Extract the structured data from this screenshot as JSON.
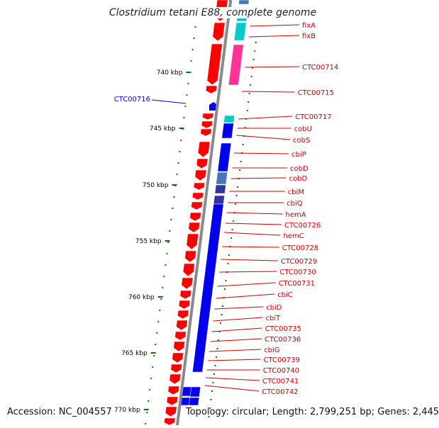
{
  "title": "Clostridium tetani E88, complete genome",
  "accession_label": "Accession: NC_004557",
  "topology_label": "Topology: circular; Length: 2,799,251 bp; Genes: 2,445",
  "colors": {
    "backbone": "#8a8a8a",
    "gene_forward": "#ff0000",
    "gene_reverse": "#0000ff",
    "label_forward": "#cc0000",
    "label_reverse": "#0000cc",
    "tick": "#007700",
    "cog_blue": "#0000ee",
    "cog_navy": "#333399",
    "cog_steel": "#4477bb",
    "cog_cyan": "#00cccc",
    "cog_pink": "#ff3399"
  },
  "scale_ticks": [
    "740 kbp",
    "745 kbp",
    "750 kbp",
    "755 kbp",
    "760 kbp",
    "765 kbp",
    "770 kbp"
  ],
  "gene_labels": [
    {
      "name": "fixA",
      "strand": "forward"
    },
    {
      "name": "fixB",
      "strand": "forward"
    },
    {
      "name": "CTC00714",
      "strand": "forward"
    },
    {
      "name": "CTC00715",
      "strand": "forward"
    },
    {
      "name": "CTC00716",
      "strand": "reverse"
    },
    {
      "name": "CTC00717",
      "strand": "forward"
    },
    {
      "name": "cobU",
      "strand": "forward"
    },
    {
      "name": "cobS",
      "strand": "forward"
    },
    {
      "name": "cbiP",
      "strand": "forward"
    },
    {
      "name": "cobD",
      "strand": "forward"
    },
    {
      "name": "cobD",
      "strand": "forward"
    },
    {
      "name": "cbiM",
      "strand": "forward"
    },
    {
      "name": "cbiQ",
      "strand": "forward"
    },
    {
      "name": "hemA",
      "strand": "forward"
    },
    {
      "name": "CTC00726",
      "strand": "forward"
    },
    {
      "name": "hemC",
      "strand": "forward"
    },
    {
      "name": "CTC00728",
      "strand": "forward"
    },
    {
      "name": "CTC00729",
      "strand": "forward"
    },
    {
      "name": "CTC00730",
      "strand": "forward"
    },
    {
      "name": "CTC00731",
      "strand": "forward"
    },
    {
      "name": "cbiC",
      "strand": "forward"
    },
    {
      "name": "cbiD",
      "strand": "forward"
    },
    {
      "name": "cbiT",
      "strand": "forward"
    },
    {
      "name": "CTC00735",
      "strand": "forward"
    },
    {
      "name": "CTC00736",
      "strand": "forward"
    },
    {
      "name": "cbiG",
      "strand": "forward"
    },
    {
      "name": "CTC00739",
      "strand": "forward"
    },
    {
      "name": "CTC00740",
      "strand": "forward"
    },
    {
      "name": "CTC00741",
      "strand": "forward"
    },
    {
      "name": "CTC00742",
      "strand": "forward"
    }
  ]
}
